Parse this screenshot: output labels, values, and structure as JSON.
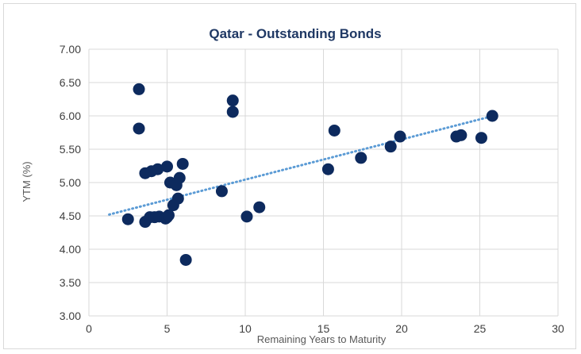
{
  "chart_data": {
    "type": "scatter",
    "title": "Qatar - Outstanding Bonds",
    "xlabel": "Remaining Years to Maturity",
    "ylabel": "YTM (%)",
    "xlim": [
      0,
      30
    ],
    "ylim": [
      3.0,
      7.0
    ],
    "xticks": [
      0,
      5,
      10,
      15,
      20,
      25,
      30
    ],
    "yticks": [
      3.0,
      3.5,
      4.0,
      4.5,
      5.0,
      5.5,
      6.0,
      6.5,
      7.0
    ],
    "ytick_format": "0.00",
    "grid": true,
    "colors": {
      "points": "#0d2a5e",
      "trendline": "#5b9bd5",
      "grid": "#d9d9d9"
    },
    "trendline": {
      "type": "linear",
      "x": [
        1.3,
        25.7
      ],
      "y": [
        4.52,
        5.99
      ],
      "style": "dotted"
    },
    "points": [
      {
        "x": 2.5,
        "y": 4.45
      },
      {
        "x": 3.2,
        "y": 6.4
      },
      {
        "x": 3.2,
        "y": 5.81
      },
      {
        "x": 3.6,
        "y": 5.14
      },
      {
        "x": 3.6,
        "y": 4.41
      },
      {
        "x": 3.9,
        "y": 4.48
      },
      {
        "x": 4.0,
        "y": 5.17
      },
      {
        "x": 4.2,
        "y": 4.48
      },
      {
        "x": 4.4,
        "y": 5.2
      },
      {
        "x": 4.5,
        "y": 4.49
      },
      {
        "x": 4.9,
        "y": 4.46
      },
      {
        "x": 5.0,
        "y": 5.24
      },
      {
        "x": 5.0,
        "y": 4.48
      },
      {
        "x": 5.1,
        "y": 4.51
      },
      {
        "x": 5.2,
        "y": 5.0
      },
      {
        "x": 5.4,
        "y": 4.66
      },
      {
        "x": 5.6,
        "y": 4.96
      },
      {
        "x": 5.7,
        "y": 4.76
      },
      {
        "x": 5.8,
        "y": 5.07
      },
      {
        "x": 6.0,
        "y": 5.28
      },
      {
        "x": 6.2,
        "y": 3.84
      },
      {
        "x": 8.5,
        "y": 4.87
      },
      {
        "x": 9.2,
        "y": 6.23
      },
      {
        "x": 9.2,
        "y": 6.06
      },
      {
        "x": 10.1,
        "y": 4.49
      },
      {
        "x": 10.9,
        "y": 4.63
      },
      {
        "x": 15.3,
        "y": 5.2
      },
      {
        "x": 15.7,
        "y": 5.78
      },
      {
        "x": 17.4,
        "y": 5.37
      },
      {
        "x": 19.3,
        "y": 5.54
      },
      {
        "x": 19.9,
        "y": 5.69
      },
      {
        "x": 23.5,
        "y": 5.69
      },
      {
        "x": 23.8,
        "y": 5.71
      },
      {
        "x": 25.1,
        "y": 5.67
      },
      {
        "x": 25.8,
        "y": 6.0
      }
    ]
  }
}
